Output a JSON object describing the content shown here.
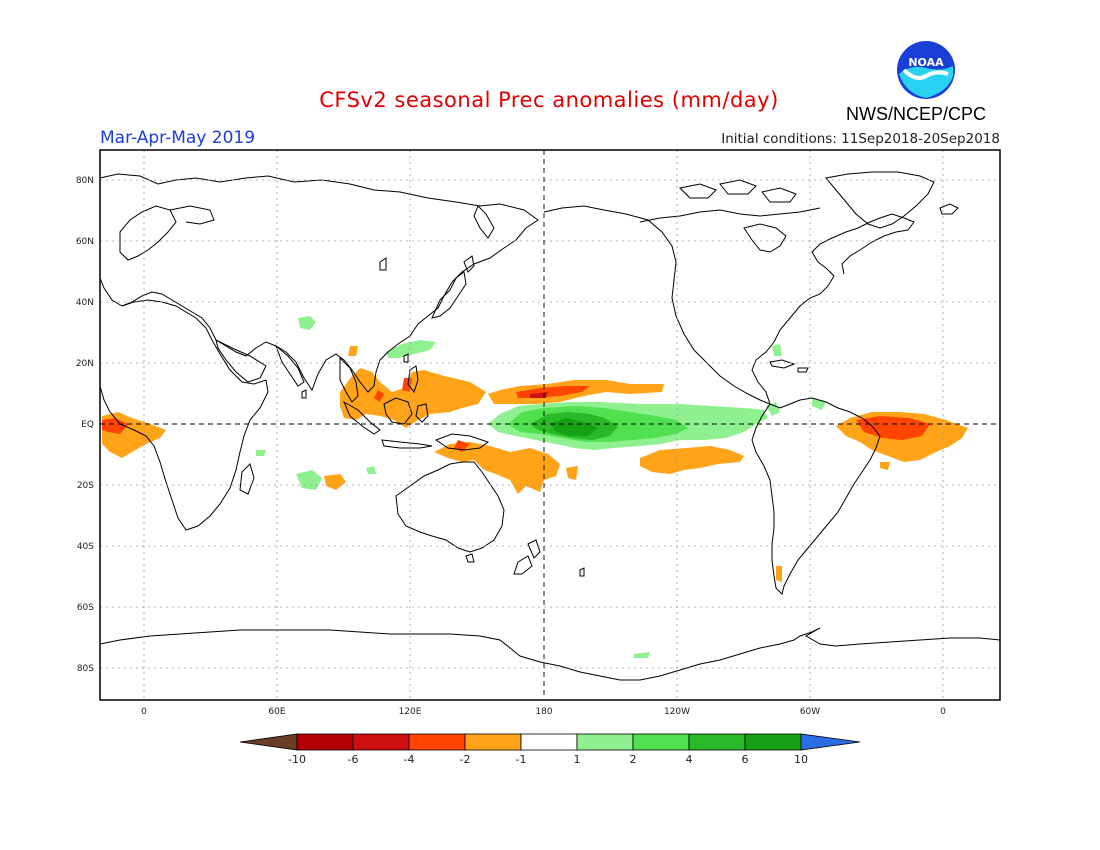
{
  "header": {
    "title": "CFSv2 seasonal Prec anomalies (mm/day)",
    "season": "Mar-Apr-May 2019",
    "initial_conditions": "Initial conditions: 11Sep2018-20Sep2018",
    "agency": "NWS/NCEP/CPC",
    "logo_text": "NOAA"
  },
  "axes": {
    "lat_labels": [
      "80N",
      "60N",
      "40N",
      "20N",
      "EQ",
      "20S",
      "40S",
      "60S",
      "80S"
    ],
    "lon_labels": [
      "0",
      "60E",
      "120E",
      "180",
      "120W",
      "60W",
      "0"
    ]
  },
  "colorbar": {
    "labels": [
      "-10",
      "-6",
      "-4",
      "-2",
      "-1",
      "1",
      "2",
      "4",
      "6",
      "10"
    ],
    "colors": [
      "#6b3e23",
      "#b40000",
      "#d01010",
      "#ff4500",
      "#ffa319",
      "#ffffff",
      "#8ff08f",
      "#50e050",
      "#28b828",
      "#16a016",
      "#2a6ee6"
    ]
  },
  "colors": {
    "dry_mod": "#ffa319",
    "dry_strong": "#ff4500",
    "dry_extreme": "#d01010",
    "wet_mod": "#8ff08f",
    "wet_strong": "#50e050",
    "wet_extreme": "#28b828",
    "wet_max": "#16a016"
  }
}
